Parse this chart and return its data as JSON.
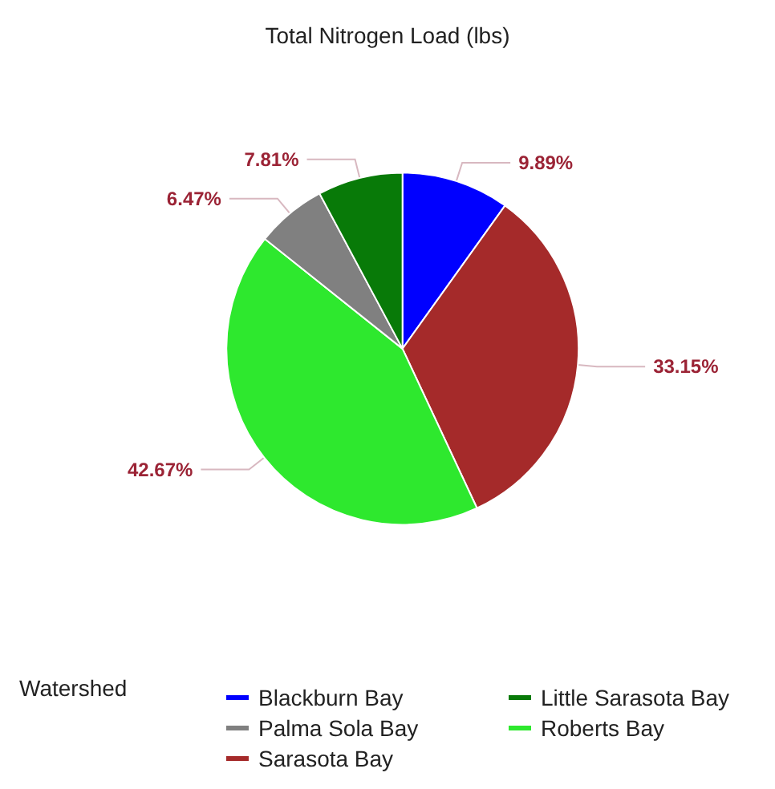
{
  "chart_data": {
    "type": "pie",
    "title": "Total Nitrogen Load (lbs)",
    "categories": [
      "Blackburn Bay",
      "Sarasota Bay",
      "Roberts Bay",
      "Palma Sola Bay",
      "Little Sarasota Bay"
    ],
    "values": [
      9.89,
      33.15,
      42.67,
      6.47,
      7.81
    ],
    "value_labels": [
      "9.89%",
      "33.15%",
      "42.67%",
      "6.47%",
      "7.81%"
    ],
    "colors": [
      "#0000ff",
      "#a52a2a",
      "#2ee82e",
      "#808080",
      "#087a08"
    ],
    "legend": "bottom",
    "legend_title": "Watershed"
  }
}
